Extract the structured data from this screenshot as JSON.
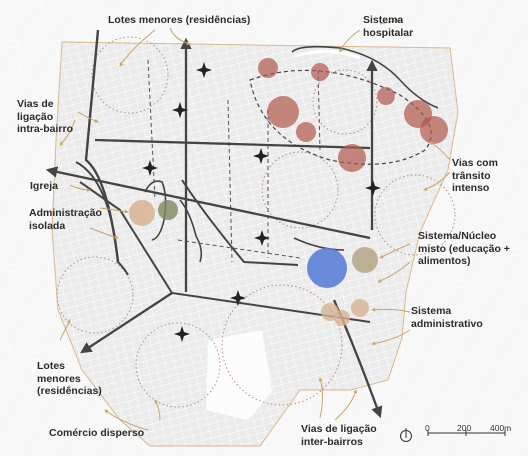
{
  "labels": {
    "lotes_top": "Lotes menores (residências)",
    "sistema_hospitalar": "Sistema\nhospitalar",
    "vias_intra": "Vias de\nligação\nintra-bairro",
    "vias_transito": "Vias com\ntrânsito\nintenso",
    "igreja": "Igreja",
    "administracao": "Administração\nisolada",
    "sistema_nucleo": "Sistema/Núcleo\nmisto (educação +\nalimentos)",
    "sistema_admin": "Sistema\nadministrativo",
    "lotes_bottom": "Lotes\nmenores\n(residências)",
    "comercio": "Comércio disperso",
    "vias_inter": "Vias de ligação\ninter-bairros"
  },
  "scale": {
    "ticks": [
      "0",
      "200",
      "400m"
    ]
  },
  "icons": {
    "north": "north-compass-icon",
    "church": "church-star-icon"
  },
  "colors": {
    "hospital": "#b0574c",
    "education_food": "#5b7fd6",
    "church": "#7d8a5c",
    "administration": "#d8b392",
    "annotation_arrows": "#c9a46b",
    "roads": "#444444"
  }
}
